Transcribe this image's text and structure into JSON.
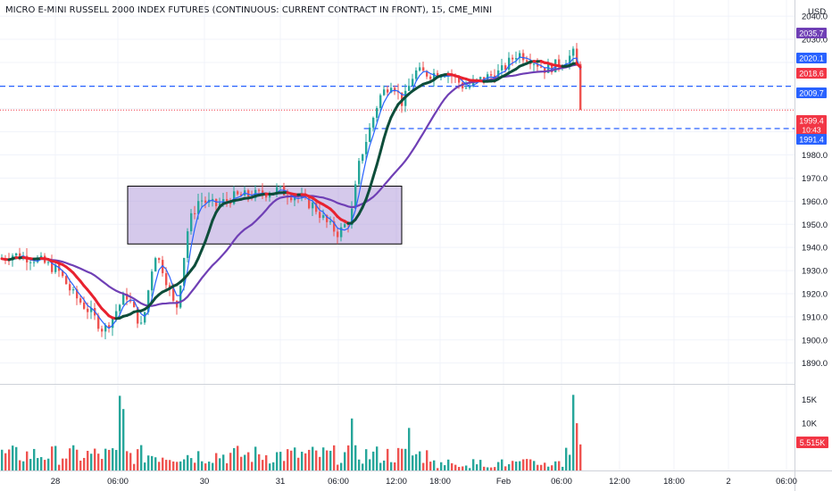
{
  "header": {
    "title": "MICRO E-MINI RUSSELL 2000 INDEX FUTURES (CONTINUOUS: CURRENT CONTRACT IN FRONT), 15, CME_MINI"
  },
  "chart_data": {
    "type": "candlestick",
    "currency": "USD",
    "price_axis": {
      "ylim": [
        1881,
        2047
      ],
      "ticks": [
        1890,
        1900,
        1910,
        1920,
        1930,
        1940,
        1950,
        1960,
        1970,
        1980,
        2030,
        2040
      ],
      "tick_labels": [
        "1890.0",
        "1900.0",
        "1910.0",
        "1920.0",
        "1930.0",
        "1940.0",
        "1950.0",
        "1960.0",
        "1970.0",
        "1980.0",
        "2030.0",
        "2040.0"
      ]
    },
    "volume_axis": {
      "ylim": [
        0,
        17000
      ],
      "ticks": [
        10000,
        15000
      ],
      "tick_labels": [
        "10K",
        "15K"
      ]
    },
    "time_axis": {
      "labels": [
        "28",
        "06:00",
        "30",
        "31",
        "06:00",
        "12:00",
        "18:00",
        "Feb",
        "06:00",
        "12:00",
        "18:00",
        "2",
        "06:00"
      ]
    },
    "price_tags": [
      {
        "label": "2035.7",
        "value": 2035.7,
        "color": "#6f3fb5"
      },
      {
        "label": "2020.1",
        "value": 2020.1,
        "color": "#2962ff"
      },
      {
        "label": "2018.6",
        "value": 2018.6,
        "color": "#f23645"
      },
      {
        "label": "2009.7",
        "value": 2009.7,
        "color": "#2962ff"
      },
      {
        "label": "1999.4",
        "value": 1999.4,
        "color": "#f23645",
        "sub": "10:43"
      },
      {
        "label": "1991.4",
        "value": 1991.4,
        "color": "#2962ff"
      }
    ],
    "volume_tag": {
      "label": "5.515K",
      "value": 5515,
      "color": "#f23645"
    },
    "horizontal_lines": [
      {
        "value": 2009.7,
        "style": "dashed",
        "color": "#2962ff"
      },
      {
        "value": 1991.4,
        "style": "dashed",
        "color": "#2962ff",
        "start_x": 0.458
      },
      {
        "value": 1999.4,
        "style": "dotted",
        "color": "#f23645"
      }
    ],
    "rectangle": {
      "y_range": [
        1941.5,
        1966.5
      ],
      "fill": "#b39ddb",
      "border": "#000000"
    },
    "last_price": 1999.4,
    "last_volume": 5515,
    "colors": {
      "up": "#26a69a",
      "down": "#ef5350",
      "ma_slow": "#6f3fb5",
      "ma_fast": "#2962ff",
      "ma_up": "#0d4d3a",
      "ma_down": "#e8222f"
    },
    "grid": true
  }
}
